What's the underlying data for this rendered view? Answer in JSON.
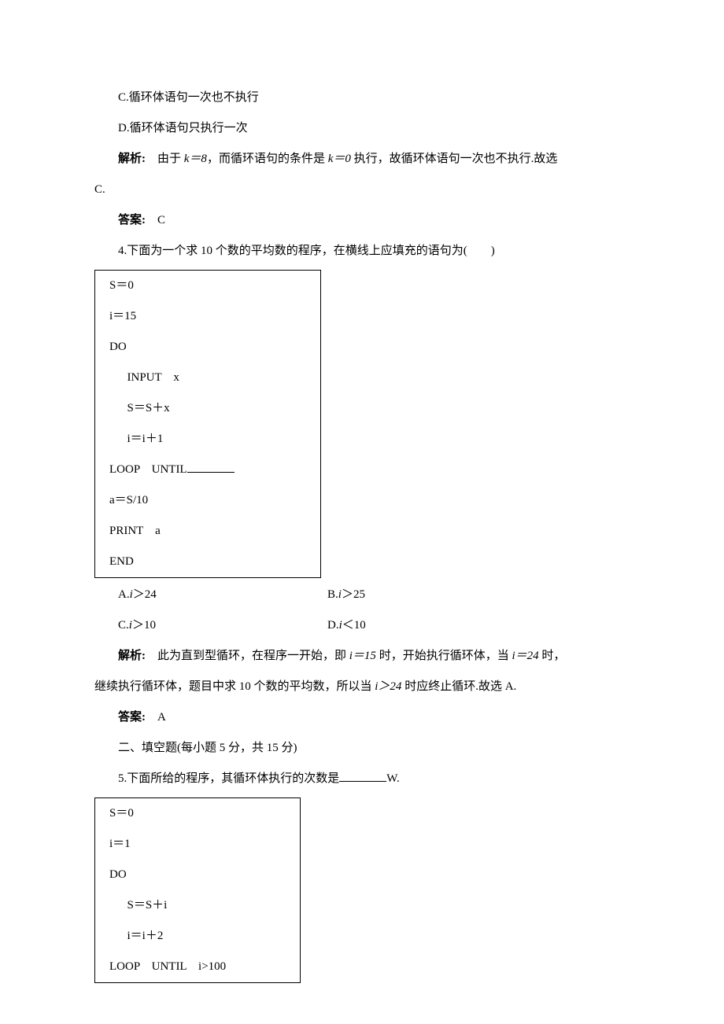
{
  "q3": {
    "opt_c": "C.循环体语句一次也不执行",
    "opt_d": "D.循环体语句只执行一次",
    "expl_label": "解析:　",
    "expl_text1": "由于 ",
    "expl_k8": "k＝8",
    "expl_text2": "，而循环语句的条件是 ",
    "expl_k0": "k＝0",
    "expl_text3": " 执行，故循环体语句一次也不执行.故选",
    "expl_cont": "C.",
    "ans_label": "答案:　",
    "ans_val": "C"
  },
  "q4": {
    "stem": "4.下面为一个求 10 个数的平均数的程序，在横线上应填充的语句为(　　)",
    "code": {
      "l1": "S＝0",
      "l2": "i＝15",
      "l3": "DO",
      "l4": "INPUT　x",
      "l5": "S＝S＋x",
      "l6": "i＝i＋1",
      "l7a": "LOOP　UNTIL",
      "l8": "a＝S/10",
      "l9": "PRINT　a",
      "l10": "END"
    },
    "opts": {
      "a_pre": "A.",
      "a_var": "i",
      "a_rest": "＞24",
      "b_pre": "B.",
      "b_var": "i",
      "b_rest": "＞25",
      "c_pre": "C.",
      "c_var": "i",
      "c_rest": "＞10",
      "d_pre": "D.",
      "d_var": "i",
      "d_rest": "＜10"
    },
    "expl_label": "解析:　",
    "expl_t1": "此为直到型循环，在程序一开始，即 ",
    "expl_i15": "i＝15",
    "expl_t2": " 时，开始执行循环体，当 ",
    "expl_i24": "i＝24",
    "expl_t3": " 时，",
    "expl_line2a": "继续执行循环体，题目中求 10 个数的平均数，所以当 ",
    "expl_igt24": "i＞24",
    "expl_line2b": " 时应终止循环.故选 A.",
    "ans_label": "答案:　",
    "ans_val": "A"
  },
  "section2": {
    "title": "二、填空题(每小题 5 分，共 15 分)"
  },
  "q5": {
    "stem_a": "5.下面所给的程序，其循环体执行的次数是",
    "stem_b": "W.",
    "code": {
      "l1": "S＝0",
      "l2": "i＝1",
      "l3": "DO",
      "l4": "S＝S＋i",
      "l5": "i＝i＋2",
      "l6": "LOOP　UNTIL　i>100"
    }
  }
}
